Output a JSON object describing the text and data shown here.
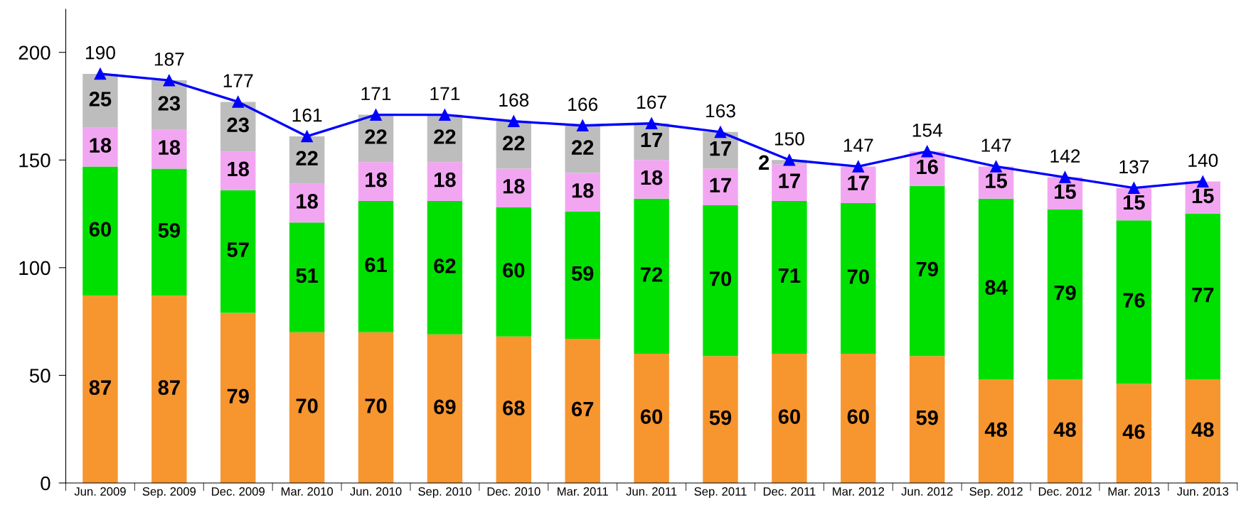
{
  "chart_data": {
    "type": "bar",
    "stacked": true,
    "categories": [
      "Jun. 2009",
      "Sep. 2009",
      "Dec. 2009",
      "Mar. 2010",
      "Jun. 2010",
      "Sep. 2010",
      "Dec. 2010",
      "Mar. 2011",
      "Jun. 2011",
      "Sep. 2011",
      "Dec. 2011",
      "Mar. 2012",
      "Jun. 2012",
      "Sep. 2012",
      "Dec. 2012",
      "Mar. 2013",
      "Jun. 2013"
    ],
    "series": [
      {
        "color": "#f7952f",
        "values": [
          87,
          87,
          79,
          70,
          70,
          69,
          68,
          67,
          60,
          59,
          60,
          60,
          59,
          48,
          48,
          46,
          48
        ]
      },
      {
        "color": "#00e000",
        "values": [
          60,
          59,
          57,
          51,
          61,
          62,
          60,
          59,
          72,
          70,
          71,
          70,
          79,
          84,
          79,
          76,
          77
        ]
      },
      {
        "color": "#f2a6f2",
        "values": [
          18,
          18,
          18,
          18,
          18,
          18,
          18,
          18,
          18,
          17,
          17,
          17,
          16,
          15,
          15,
          15,
          15
        ]
      },
      {
        "color": "#bdbdbd",
        "values": [
          25,
          23,
          23,
          22,
          22,
          22,
          22,
          22,
          17,
          17,
          2,
          null,
          null,
          null,
          null,
          null,
          null
        ]
      },
      {
        "type": "line",
        "color": "#0000ff",
        "marker": "triangle",
        "line_style": "solid",
        "values": [
          190,
          187,
          177,
          161,
          171,
          171,
          168,
          166,
          167,
          163,
          150,
          147,
          154,
          147,
          142,
          137,
          140
        ]
      }
    ],
    "ylim": [
      0,
      220
    ],
    "yticks": [
      0,
      50,
      100,
      150,
      200
    ],
    "data_labels": true
  }
}
